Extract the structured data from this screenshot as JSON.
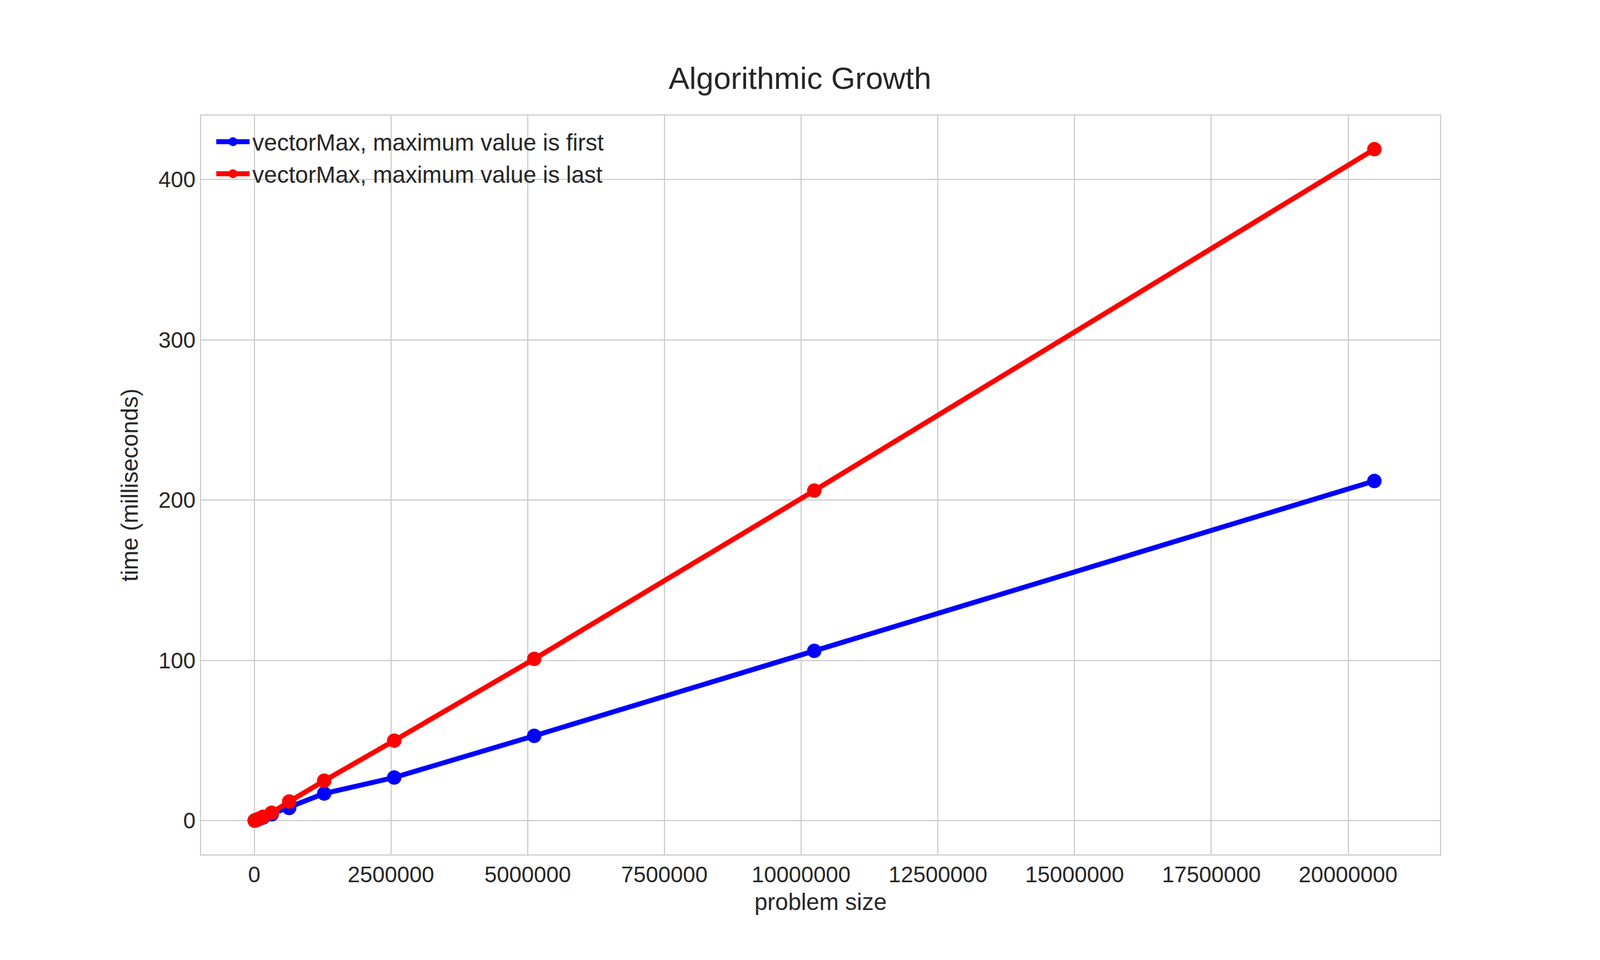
{
  "chart_data": {
    "type": "line",
    "title": "Algorithmic Growth",
    "x_label": "problem size",
    "y_label": "time (milliseconds)",
    "x": [
      10000,
      20000,
      40000,
      80000,
      160000,
      320000,
      640000,
      1280000,
      2560000,
      5120000,
      10240000,
      20480000
    ],
    "series": [
      {
        "name": "vectorMax, maximum value is first",
        "color": "#0000ff",
        "marker": "circle",
        "line_style": "solid",
        "values": [
          0.12,
          0.25,
          0.5,
          1,
          2,
          4,
          8,
          17,
          27,
          53,
          106,
          212
        ]
      },
      {
        "name": "vectorMax, maximum value is last",
        "color": "#ff0000",
        "marker": "circle",
        "line_style": "solid",
        "values": [
          0.15,
          0.3,
          0.6,
          1.2,
          2.5,
          5,
          12,
          25,
          50,
          101,
          206,
          419
        ]
      }
    ],
    "xlim": [
      -970000,
      21680000
    ],
    "xticks": [
      0,
      2500000,
      5000000,
      7500000,
      10000000,
      12500000,
      15000000,
      17500000,
      20000000
    ],
    "ylim": [
      -21,
      440
    ],
    "yticks": [
      0,
      100,
      200,
      300,
      400
    ],
    "grid": true,
    "legend": "upper left"
  }
}
